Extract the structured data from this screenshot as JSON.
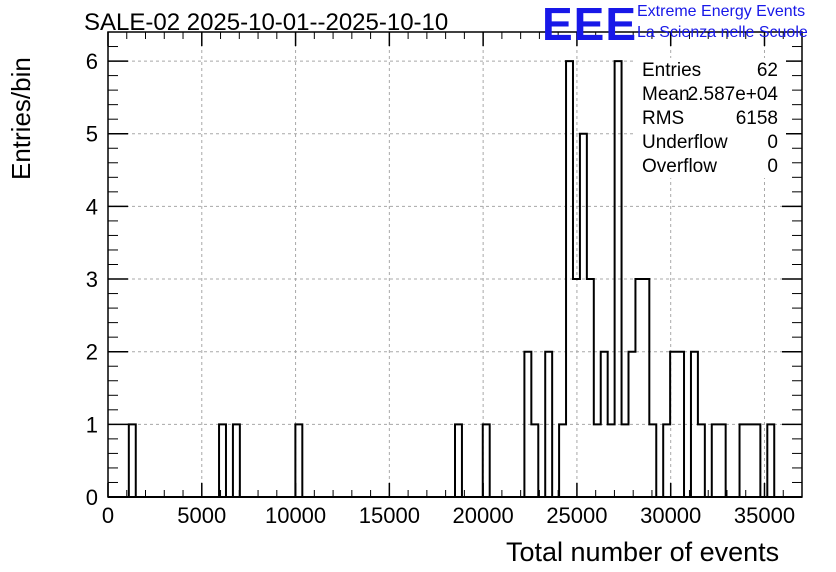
{
  "title": "SALE-02 2025-10-01--2025-10-10",
  "logo": {
    "mark": "EEE",
    "line1": "Extreme Energy Events",
    "line2": "La Scienza nelle Scuole"
  },
  "stats": [
    {
      "name": "Entries",
      "value": "62"
    },
    {
      "name": "Mean",
      "value": "2.587e+04"
    },
    {
      "name": "RMS",
      "value": "6158"
    },
    {
      "name": "Underflow",
      "value": "0"
    },
    {
      "name": "Overflow",
      "value": "0"
    }
  ],
  "colors": {
    "line": "#000000",
    "grid": "#a8a8a8",
    "accent": "#1818e8"
  },
  "chart_data": {
    "type": "bar",
    "title": "SALE-02 2025-10-01--2025-10-10",
    "xlabel": "Total number of events",
    "ylabel": "Entries/bin",
    "xlim": [
      0,
      37000
    ],
    "ylim": [
      0,
      6.4
    ],
    "bin_width": 370,
    "xticks": [
      0,
      5000,
      10000,
      15000,
      20000,
      25000,
      30000,
      35000
    ],
    "xtick_labels": [
      "0",
      "5000",
      "10000",
      "15000",
      "20000",
      "25000",
      "30000",
      "35000"
    ],
    "yticks": [
      0,
      1,
      2,
      3,
      4,
      5,
      6
    ],
    "ytick_labels": [
      "0",
      "1",
      "2",
      "3",
      "4",
      "5",
      "6"
    ],
    "grid": true,
    "legend": "stats box top-right",
    "bins": [
      {
        "x": 1110,
        "count": 1
      },
      {
        "x": 5920,
        "count": 1
      },
      {
        "x": 6660,
        "count": 1
      },
      {
        "x": 9990,
        "count": 1
      },
      {
        "x": 18500,
        "count": 1
      },
      {
        "x": 19980,
        "count": 1
      },
      {
        "x": 22200,
        "count": 2
      },
      {
        "x": 22570,
        "count": 1
      },
      {
        "x": 23310,
        "count": 2
      },
      {
        "x": 24050,
        "count": 1
      },
      {
        "x": 24420,
        "count": 6
      },
      {
        "x": 24790,
        "count": 3
      },
      {
        "x": 25160,
        "count": 5
      },
      {
        "x": 25530,
        "count": 3
      },
      {
        "x": 25900,
        "count": 1
      },
      {
        "x": 26270,
        "count": 2
      },
      {
        "x": 26640,
        "count": 1
      },
      {
        "x": 27010,
        "count": 6
      },
      {
        "x": 27380,
        "count": 1
      },
      {
        "x": 27750,
        "count": 2
      },
      {
        "x": 28120,
        "count": 3
      },
      {
        "x": 28490,
        "count": 3
      },
      {
        "x": 28860,
        "count": 1
      },
      {
        "x": 29600,
        "count": 1
      },
      {
        "x": 29970,
        "count": 2
      },
      {
        "x": 30340,
        "count": 2
      },
      {
        "x": 31080,
        "count": 2
      },
      {
        "x": 31450,
        "count": 1
      },
      {
        "x": 32190,
        "count": 1
      },
      {
        "x": 32560,
        "count": 1
      },
      {
        "x": 33670,
        "count": 1
      },
      {
        "x": 34040,
        "count": 1
      },
      {
        "x": 34410,
        "count": 1
      },
      {
        "x": 35150,
        "count": 1
      }
    ]
  }
}
